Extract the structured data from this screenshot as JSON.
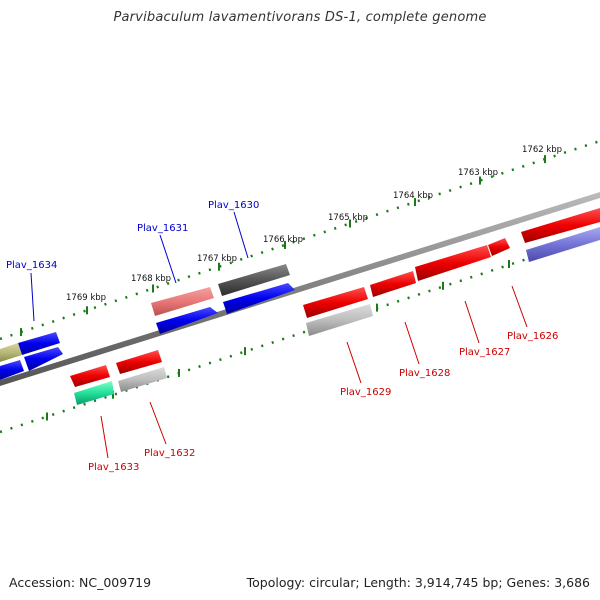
{
  "title": "Parvibaculum lavamentivorans DS-1, complete genome",
  "footer": {
    "accession": "Accession: NC_009719",
    "summary": "Topology: circular; Length: 3,914,745 bp; Genes: 3,686"
  },
  "colors": {
    "forward_label": "#0000cc",
    "reverse_label": "#cc0000",
    "backbone": "#808080",
    "ticks": "#1a7a1a"
  },
  "kbp_labels": [
    "1769 kbp",
    "1768 kbp",
    "1767 kbp",
    "1766 kbp",
    "1765 kbp",
    "1764 kbp",
    "1763 kbp",
    "1762 kbp"
  ],
  "genes": [
    {
      "label": "Plav_1634",
      "strand": "forward",
      "color": "#0000ee"
    },
    {
      "label": "Plav_1631",
      "strand": "forward",
      "color": "#0000ee"
    },
    {
      "label": "Plav_1630",
      "strand": "forward",
      "color": "#0000ee"
    },
    {
      "label": "Plav_1633",
      "strand": "reverse",
      "color": "#ee0000"
    },
    {
      "label": "Plav_1632",
      "strand": "reverse",
      "color": "#ee0000"
    },
    {
      "label": "Plav_1629",
      "strand": "reverse",
      "color": "#ee0000"
    },
    {
      "label": "Plav_1628",
      "strand": "reverse",
      "color": "#ee0000"
    },
    {
      "label": "Plav_1627",
      "strand": "reverse",
      "color": "#ee0000"
    },
    {
      "label": "Plav_1626",
      "strand": "reverse",
      "color": "#ee0000"
    }
  ]
}
